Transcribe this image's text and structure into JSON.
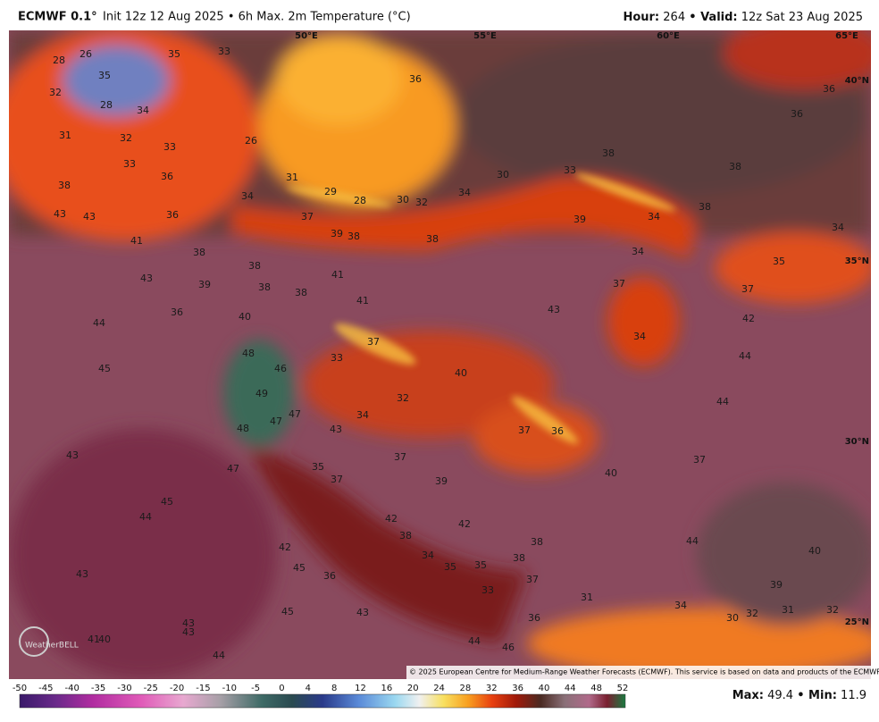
{
  "header": {
    "model": "ECMWF 0.1°",
    "description": "Init 12z 12 Aug 2025 • 6h Max. 2m Temperature (°C)",
    "hour_label": "Hour:",
    "hour": "264",
    "valid_label": "• Valid:",
    "valid": "12z Sat 23 Aug 2025"
  },
  "map": {
    "lon_labels": [
      "50°E",
      "55°E",
      "60°E",
      "65°E"
    ],
    "lat_labels": [
      "40°N",
      "35°N",
      "30°N",
      "25°N"
    ],
    "labels": [
      28,
      26,
      35,
      33,
      35,
      32,
      28,
      34,
      36,
      36,
      36,
      31,
      32,
      33,
      33,
      26,
      36,
      38,
      38,
      38,
      33,
      30,
      31,
      29,
      34,
      34,
      28,
      30,
      32,
      43,
      43,
      36,
      37,
      38,
      34,
      39,
      41,
      39,
      38,
      38,
      34,
      38,
      34,
      35,
      38,
      43,
      41,
      39,
      38,
      37,
      37,
      38,
      41,
      36,
      43,
      40,
      42,
      44,
      37,
      34,
      48,
      44,
      33,
      45,
      46,
      40,
      49,
      32,
      44,
      47,
      47,
      34,
      48,
      43,
      37,
      36,
      43,
      35,
      37,
      37,
      47,
      37,
      40,
      39,
      45,
      44,
      42,
      42,
      38,
      38,
      44,
      40,
      42,
      34,
      35,
      35,
      38,
      45,
      36,
      37,
      43,
      33,
      39,
      31,
      34,
      43,
      45,
      31,
      32,
      32,
      30,
      36,
      43,
      43,
      41,
      40,
      44,
      46,
      44
    ],
    "logo": "WeatherBELL",
    "copyright": "© 2025 European Centre for Medium-Range Weather Forecasts (ECMWF). This service is based on data and products of the ECMWF."
  },
  "colorbar": {
    "ticks": [
      -50,
      -45,
      -40,
      -35,
      -30,
      -25,
      -20,
      -15,
      -10,
      -5,
      0,
      4,
      8,
      12,
      16,
      20,
      24,
      28,
      32,
      36,
      40,
      44,
      48,
      52
    ]
  },
  "footer": {
    "max_label": "Max:",
    "max": 49.4,
    "min_label": "• Min:",
    "min": 11.9
  }
}
